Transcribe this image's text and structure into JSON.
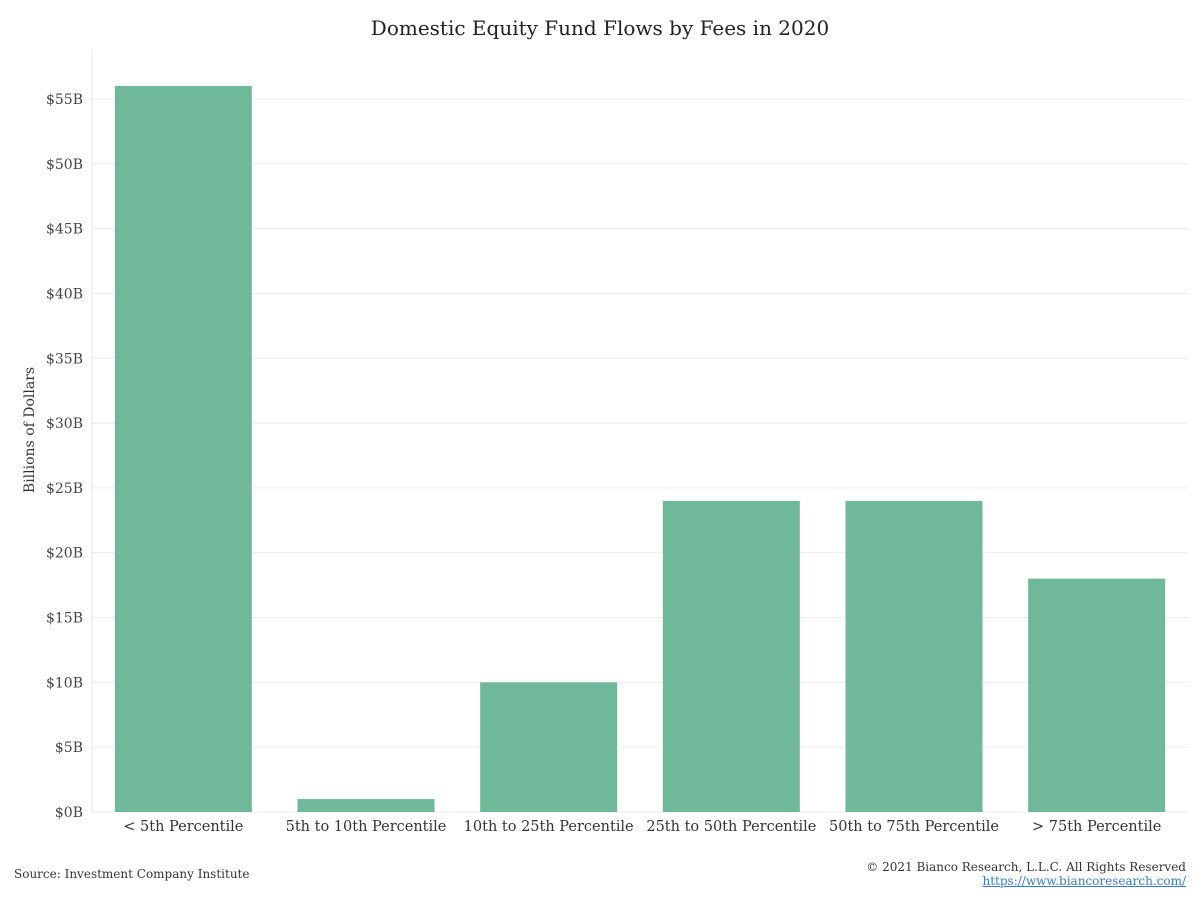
{
  "chart_data": {
    "type": "bar",
    "title": "Domestic Equity Fund Flows by Fees in 2020",
    "xlabel": "",
    "ylabel": "Billions of Dollars",
    "categories": [
      "< 5th Percentile",
      "5th to 10th Percentile",
      "10th to 25th Percentile",
      "25th to 50th Percentile",
      "50th to 75th Percentile",
      "> 75th Percentile"
    ],
    "values": [
      56,
      1,
      10,
      24,
      24,
      18
    ],
    "ylim": [
      0,
      58
    ],
    "yticks": [
      0,
      5,
      10,
      15,
      20,
      25,
      30,
      35,
      40,
      45,
      50,
      55
    ],
    "ytick_labels": [
      "$0B",
      "$5B",
      "$10B",
      "$15B",
      "$20B",
      "$25B",
      "$30B",
      "$35B",
      "$40B",
      "$45B",
      "$50B",
      "$55B"
    ],
    "grid": true,
    "legend": "none",
    "bar_color": "#6fb899"
  },
  "footer": {
    "source": "Source: Investment Company Institute",
    "copyright": "© 2021 Bianco Research, L.L.C. All Rights Reserved",
    "website": "https://www.biancoresearch.com/"
  }
}
